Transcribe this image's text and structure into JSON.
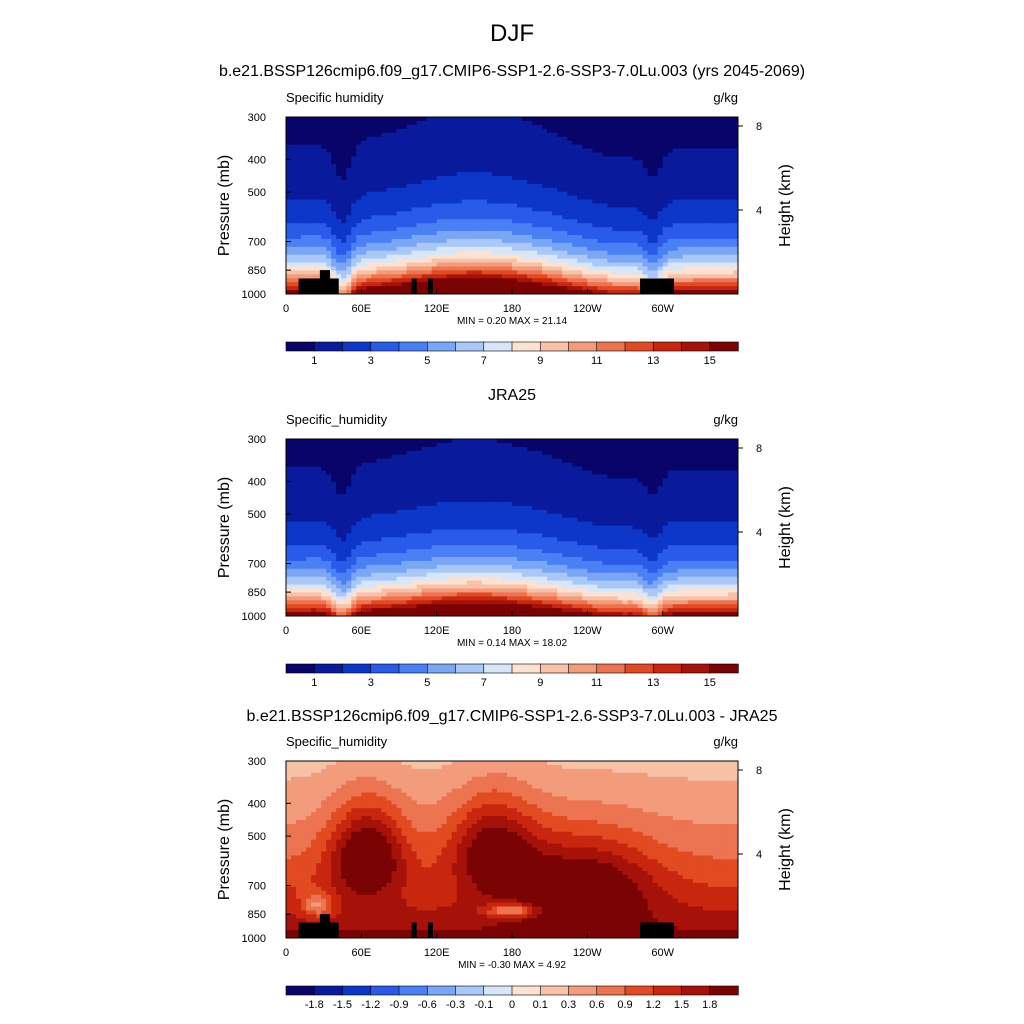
{
  "figure": {
    "title": "DJF"
  },
  "colors": {
    "abs_levels": [
      "#08046a",
      "#0a1a9c",
      "#0c37c9",
      "#2a5ae8",
      "#4a80f4",
      "#7aa6f6",
      "#a9c8f8",
      "#d7e6f8",
      "#fde2d2",
      "#f8c2a9",
      "#f39c7c",
      "#ec7451",
      "#e24a22",
      "#c9260f",
      "#a6120a",
      "#7a0303"
    ],
    "diff_levels": [
      "#08046a",
      "#0a1a9c",
      "#0c37c9",
      "#2a5ae8",
      "#4a80f4",
      "#7aa6f6",
      "#a9c8f8",
      "#d7e6f8",
      "#fde2d2",
      "#f8c2a9",
      "#f39c7c",
      "#ec7451",
      "#e24a22",
      "#c9260f",
      "#a6120a",
      "#7a0303"
    ],
    "terrain": "#000000"
  },
  "chart_data": [
    {
      "type": "heatmap",
      "title": "b.e21.BSSP126cmip6.f09_g17.CMIP6-SSP1-2.6-SSP3-7.0Lu.003 (yrs 2045-2069)",
      "left_label": "Specific humidity",
      "right_label": "g/kg",
      "ylabel": "Pressure (mb)",
      "y2label": "Height (km)",
      "xticks": [
        "0",
        "60E",
        "120E",
        "180",
        "120W",
        "60W"
      ],
      "xtick_lon": [
        0,
        60,
        120,
        180,
        240,
        300
      ],
      "xlim": [
        0,
        360
      ],
      "yticks": [
        300,
        400,
        500,
        700,
        850,
        1000
      ],
      "ylim": [
        1000,
        300
      ],
      "y2ticks": [
        "8",
        "4"
      ],
      "y2tick_km": [
        8,
        4
      ],
      "stats": {
        "min_label": "MIN =",
        "min": "0.20",
        "max_label": "MAX =",
        "max": "21.14"
      },
      "colorbar": {
        "labels": [
          "1",
          "3",
          "5",
          "7",
          "9",
          "11",
          "13",
          "15"
        ]
      },
      "terrain": true
    },
    {
      "type": "heatmap",
      "title": "JRA25",
      "left_label": "Specific_humidity",
      "right_label": "g/kg",
      "ylabel": "Pressure (mb)",
      "y2label": "Height (km)",
      "xticks": [
        "0",
        "60E",
        "120E",
        "180",
        "120W",
        "60W"
      ],
      "xtick_lon": [
        0,
        60,
        120,
        180,
        240,
        300
      ],
      "xlim": [
        0,
        360
      ],
      "yticks": [
        300,
        400,
        500,
        700,
        850,
        1000
      ],
      "ylim": [
        1000,
        300
      ],
      "y2ticks": [
        "8",
        "4"
      ],
      "y2tick_km": [
        8,
        4
      ],
      "stats": {
        "min_label": "MIN =",
        "min": "0.14",
        "max_label": "MAX =",
        "max": "18.02"
      },
      "colorbar": {
        "labels": [
          "1",
          "3",
          "5",
          "7",
          "9",
          "11",
          "13",
          "15"
        ]
      },
      "terrain": false
    },
    {
      "type": "heatmap",
      "title": "b.e21.BSSP126cmip6.f09_g17.CMIP6-SSP1-2.6-SSP3-7.0Lu.003 - JRA25",
      "left_label": "Specific_humidity",
      "right_label": "g/kg",
      "ylabel": "Pressure (mb)",
      "y2label": "Height (km)",
      "xticks": [
        "0",
        "60E",
        "120E",
        "180",
        "120W",
        "60W"
      ],
      "xtick_lon": [
        0,
        60,
        120,
        180,
        240,
        300
      ],
      "xlim": [
        0,
        360
      ],
      "yticks": [
        300,
        400,
        500,
        700,
        850,
        1000
      ],
      "ylim": [
        1000,
        300
      ],
      "y2ticks": [
        "8",
        "4"
      ],
      "y2tick_km": [
        8,
        4
      ],
      "stats": {
        "min_label": "MIN =",
        "min": "-0.30",
        "max_label": "MAX =",
        "max": "4.92"
      },
      "colorbar": {
        "labels": [
          "-1.8",
          "-1.5",
          "-1.2",
          "-0.9",
          "-0.6",
          "-0.3",
          "-0.1",
          "0",
          "0.1",
          "0.3",
          "0.6",
          "0.9",
          "1.2",
          "1.5",
          "1.8"
        ]
      },
      "terrain": true
    }
  ]
}
